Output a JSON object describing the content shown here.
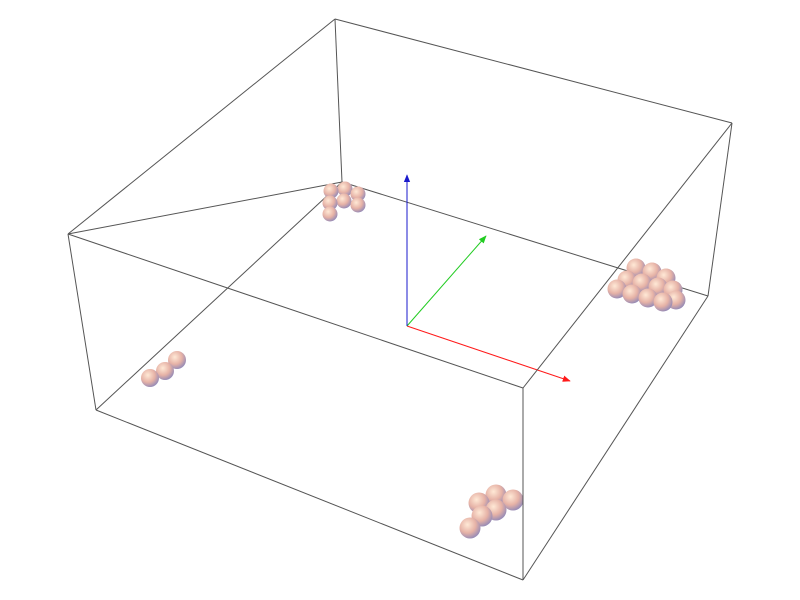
{
  "colors": {
    "background": "#ffffff",
    "box_edge": "#555555",
    "axis_x": "#ff1a1a",
    "axis_y": "#22cc22",
    "axis_z": "#1a1acc",
    "sphere_highlight": "#ffe9d6",
    "sphere_mid": "#e6b2a6",
    "sphere_shadow": "#8c86b8"
  },
  "scene": {
    "axes": [
      {
        "name": "x-axis-arrow",
        "color_key": "axis_x"
      },
      {
        "name": "y-axis-arrow",
        "color_key": "axis_y"
      },
      {
        "name": "z-axis-arrow",
        "color_key": "axis_z"
      }
    ],
    "clusters": [
      {
        "name": "sphere-cluster-back-left",
        "sphere_count": 7
      },
      {
        "name": "sphere-cluster-right",
        "sphere_count": 12
      },
      {
        "name": "sphere-cluster-left",
        "sphere_count": 3
      },
      {
        "name": "sphere-cluster-front",
        "sphere_count": 6
      }
    ]
  }
}
